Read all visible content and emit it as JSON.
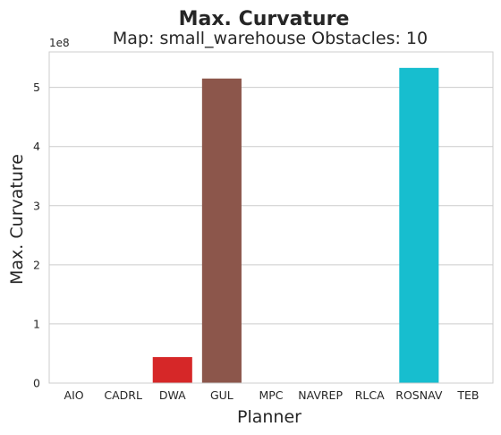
{
  "chart_data": {
    "type": "bar",
    "title": "Max. Curvature",
    "subtitle": "Map: small_warehouse Obstacles: 10",
    "xlabel": "Planner",
    "ylabel": "Max. Curvature",
    "y_offset_label": "1e8",
    "y_scale": 100000000,
    "ylim": [
      0,
      5.6
    ],
    "y_ticks": [
      0,
      1,
      2,
      3,
      4,
      5
    ],
    "grid": "y",
    "categories": [
      "AIO",
      "CADRL",
      "DWA",
      "GUL",
      "MPC",
      "NAVREP",
      "RLCA",
      "ROSNAV",
      "TEB"
    ],
    "values": [
      0,
      0,
      0.44,
      5.15,
      0,
      0,
      0,
      5.33,
      0
    ],
    "colors": [
      "#1f77b4",
      "#ff7f0e",
      "#d62728",
      "#8c564b",
      "#9467bd",
      "#e377c2",
      "#bcbd22",
      "#17becf",
      "#2ca02c"
    ]
  }
}
